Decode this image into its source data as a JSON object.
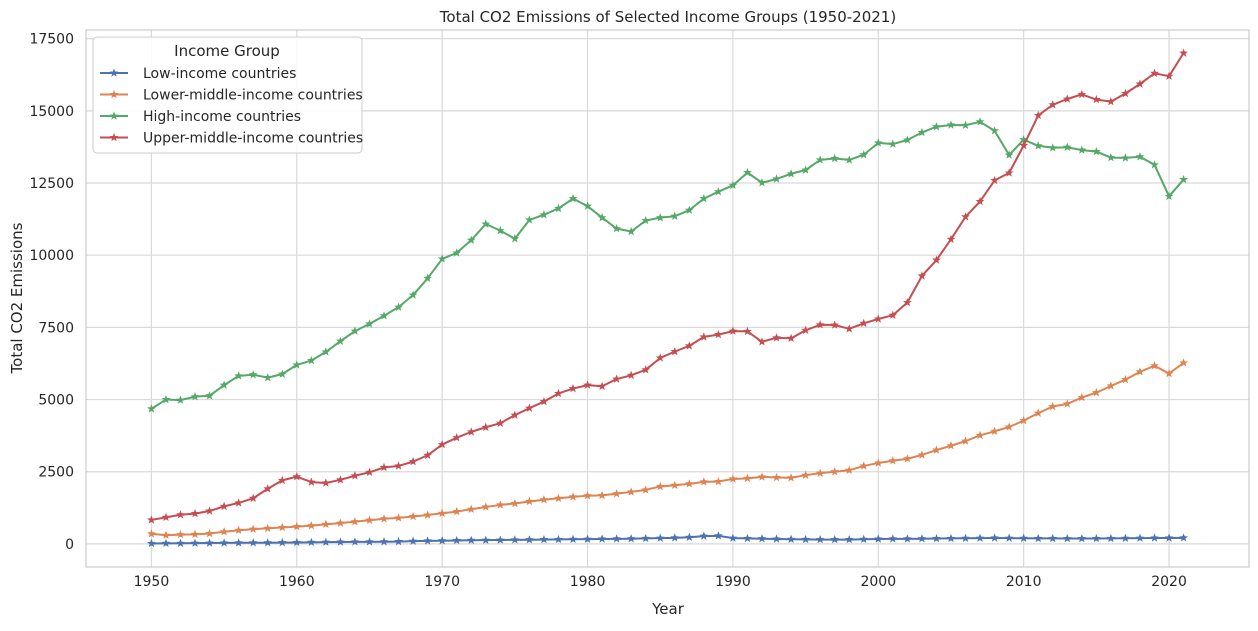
{
  "chart_data": {
    "type": "line",
    "title": "Total CO2 Emissions of Selected Income Groups (1950-2021)",
    "xlabel": "Year",
    "ylabel": "Total CO2 Emissions",
    "xlim": [
      1945.5,
      2025.5
    ],
    "ylim": [
      -800,
      17800
    ],
    "xticks": [
      1950,
      1960,
      1970,
      1980,
      1990,
      2000,
      2010,
      2020
    ],
    "yticks": [
      0,
      2500,
      5000,
      7500,
      10000,
      12500,
      15000,
      17500
    ],
    "grid": true,
    "legend": {
      "title": "Income Group",
      "position": "top-left"
    },
    "x": [
      1950,
      1951,
      1952,
      1953,
      1954,
      1955,
      1956,
      1957,
      1958,
      1959,
      1960,
      1961,
      1962,
      1963,
      1964,
      1965,
      1966,
      1967,
      1968,
      1969,
      1970,
      1971,
      1972,
      1973,
      1974,
      1975,
      1976,
      1977,
      1978,
      1979,
      1980,
      1981,
      1982,
      1983,
      1984,
      1985,
      1986,
      1987,
      1988,
      1989,
      1990,
      1991,
      1992,
      1993,
      1994,
      1995,
      1996,
      1997,
      1998,
      1999,
      2000,
      2001,
      2002,
      2003,
      2004,
      2005,
      2006,
      2007,
      2008,
      2009,
      2010,
      2011,
      2012,
      2013,
      2014,
      2015,
      2016,
      2017,
      2018,
      2019,
      2020,
      2021
    ],
    "series": [
      {
        "name": "Low-income countries",
        "color": "#4c72b0",
        "values": [
          15,
          20,
          22,
          25,
          30,
          35,
          38,
          40,
          42,
          45,
          50,
          55,
          60,
          65,
          70,
          72,
          75,
          80,
          95,
          105,
          110,
          120,
          125,
          130,
          135,
          140,
          145,
          150,
          155,
          160,
          165,
          170,
          175,
          180,
          190,
          200,
          210,
          230,
          270,
          280,
          200,
          190,
          180,
          170,
          160,
          155,
          150,
          150,
          150,
          160,
          170,
          175,
          175,
          180,
          185,
          190,
          195,
          200,
          205,
          200,
          195,
          190,
          190,
          185,
          185,
          185,
          190,
          195,
          200,
          205,
          205,
          210
        ]
      },
      {
        "name": "Lower-middle-income countries",
        "color": "#dd8452",
        "values": [
          350,
          300,
          320,
          330,
          360,
          420,
          470,
          510,
          540,
          570,
          600,
          630,
          680,
          720,
          770,
          820,
          870,
          900,
          950,
          1000,
          1060,
          1120,
          1200,
          1280,
          1350,
          1400,
          1470,
          1530,
          1580,
          1630,
          1670,
          1680,
          1740,
          1800,
          1870,
          1990,
          2030,
          2080,
          2150,
          2160,
          2250,
          2270,
          2320,
          2300,
          2290,
          2380,
          2450,
          2500,
          2550,
          2700,
          2800,
          2880,
          2950,
          3080,
          3250,
          3400,
          3560,
          3760,
          3900,
          4050,
          4270,
          4530,
          4760,
          4850,
          5070,
          5240,
          5470,
          5690,
          5960,
          6170,
          5900,
          6270
        ]
      },
      {
        "name": "High-income countries",
        "color": "#55a868",
        "values": [
          4680,
          5000,
          4980,
          5100,
          5130,
          5500,
          5820,
          5860,
          5760,
          5880,
          6200,
          6350,
          6650,
          7020,
          7370,
          7620,
          7900,
          8200,
          8620,
          9200,
          9870,
          10080,
          10520,
          11080,
          10850,
          10570,
          11220,
          11400,
          11620,
          11960,
          11700,
          11300,
          10920,
          10820,
          11200,
          11300,
          11350,
          11560,
          11960,
          12200,
          12420,
          12860,
          12510,
          12640,
          12820,
          12950,
          13300,
          13350,
          13300,
          13480,
          13890,
          13850,
          13990,
          14250,
          14450,
          14510,
          14500,
          14620,
          14310,
          13470,
          14000,
          13790,
          13720,
          13740,
          13640,
          13590,
          13380,
          13370,
          13410,
          13130,
          12040,
          12620
        ]
      },
      {
        "name": "Upper-middle-income countries",
        "color": "#c44e52",
        "values": [
          830,
          920,
          1010,
          1050,
          1140,
          1300,
          1420,
          1580,
          1910,
          2200,
          2330,
          2140,
          2110,
          2220,
          2360,
          2480,
          2650,
          2700,
          2850,
          3070,
          3440,
          3680,
          3880,
          4040,
          4180,
          4460,
          4700,
          4930,
          5210,
          5380,
          5500,
          5460,
          5710,
          5840,
          6030,
          6440,
          6660,
          6860,
          7170,
          7250,
          7370,
          7360,
          7000,
          7140,
          7120,
          7400,
          7590,
          7580,
          7450,
          7640,
          7790,
          7920,
          8360,
          9280,
          9830,
          10550,
          11330,
          11860,
          12590,
          12850,
          13800,
          14840,
          15210,
          15410,
          15570,
          15390,
          15320,
          15600,
          15930,
          16300,
          16200,
          17000
        ]
      }
    ]
  }
}
